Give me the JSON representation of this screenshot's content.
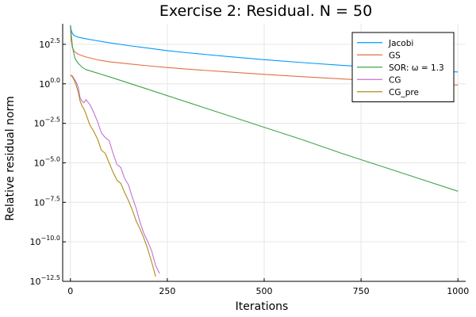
{
  "chart_data": {
    "type": "line",
    "title": "Exercise 2: Residual. N = 50",
    "xlabel": "Iterations",
    "ylabel": "Relative residual norm",
    "xlim": [
      -20,
      1020
    ],
    "ylim": [
      -12.5,
      3.8
    ],
    "y_scale": "log10",
    "grid": true,
    "legend_position": "top-right",
    "x_ticks": [
      {
        "value": 0,
        "label": "0"
      },
      {
        "value": 250,
        "label": "250"
      },
      {
        "value": 500,
        "label": "500"
      },
      {
        "value": 750,
        "label": "750"
      },
      {
        "value": 1000,
        "label": "1000"
      }
    ],
    "y_ticks": [
      {
        "value": 2.5,
        "base": "10",
        "exp": "2.5"
      },
      {
        "value": 0.0,
        "base": "10",
        "exp": "0.0"
      },
      {
        "value": -2.5,
        "base": "10",
        "exp": "−2.5"
      },
      {
        "value": -5.0,
        "base": "10",
        "exp": "−5.0"
      },
      {
        "value": -7.5,
        "base": "10",
        "exp": "−7.5"
      },
      {
        "value": -10.0,
        "base": "10",
        "exp": "−10.0"
      },
      {
        "value": -12.5,
        "base": "10",
        "exp": "−12.5"
      }
    ],
    "series": [
      {
        "name": "Jacobi",
        "color": "#009AFA",
        "x": [
          0,
          2,
          5,
          10,
          20,
          40,
          70,
          100,
          150,
          200,
          250,
          300,
          400,
          500,
          600,
          700,
          800,
          900,
          1000
        ],
        "y": [
          3.7,
          3.4,
          3.2,
          3.05,
          2.95,
          2.85,
          2.72,
          2.6,
          2.42,
          2.26,
          2.1,
          1.97,
          1.74,
          1.53,
          1.34,
          1.17,
          1.02,
          0.87,
          0.75
        ]
      },
      {
        "name": "GS",
        "color": "#E36F47",
        "x": [
          0,
          2,
          5,
          10,
          20,
          40,
          70,
          100,
          150,
          200,
          250,
          300,
          400,
          500,
          600,
          700,
          800,
          900,
          1000
        ],
        "y": [
          3.7,
          2.8,
          2.3,
          2.05,
          1.87,
          1.7,
          1.52,
          1.4,
          1.26,
          1.14,
          1.03,
          0.93,
          0.76,
          0.6,
          0.45,
          0.31,
          0.18,
          0.05,
          -0.08
        ]
      },
      {
        "name": "SOR: ω = 1.3",
        "color": "#3EA44E",
        "x": [
          0,
          2,
          5,
          8,
          12,
          20,
          30,
          40,
          60,
          100,
          200,
          300,
          400,
          500,
          600,
          700,
          800,
          900,
          1000
        ],
        "y": [
          3.7,
          3.2,
          2.4,
          2.0,
          1.6,
          1.3,
          1.05,
          0.9,
          0.75,
          0.45,
          -0.35,
          -1.15,
          -1.95,
          -2.75,
          -3.55,
          -4.4,
          -5.2,
          -6.0,
          -6.8
        ]
      },
      {
        "name": "CG",
        "color": "#C271D2",
        "x": [
          0,
          5,
          10,
          15,
          20,
          25,
          30,
          35,
          40,
          50,
          60,
          70,
          80,
          90,
          100,
          110,
          120,
          130,
          140,
          150,
          160,
          170,
          180,
          190,
          200,
          210,
          220,
          230
        ],
        "y": [
          0.55,
          0.5,
          0.3,
          0.1,
          -0.2,
          -0.9,
          -1.1,
          -1.2,
          -1.0,
          -1.3,
          -1.8,
          -2.4,
          -3.1,
          -3.4,
          -3.6,
          -4.4,
          -5.1,
          -5.3,
          -6.0,
          -6.4,
          -7.2,
          -7.9,
          -8.8,
          -9.5,
          -10.0,
          -10.6,
          -11.5,
          -12.0
        ]
      },
      {
        "name": "CG_pre",
        "color": "#AC8D18",
        "x": [
          0,
          5,
          10,
          15,
          20,
          25,
          30,
          35,
          40,
          50,
          60,
          70,
          80,
          90,
          100,
          110,
          120,
          130,
          140,
          150,
          160,
          170,
          180,
          190,
          200,
          210,
          220
        ],
        "y": [
          0.55,
          0.45,
          0.2,
          -0.1,
          -0.5,
          -1.1,
          -1.4,
          -1.6,
          -1.9,
          -2.6,
          -3.0,
          -3.5,
          -4.2,
          -4.4,
          -5.0,
          -5.6,
          -6.1,
          -6.3,
          -6.9,
          -7.4,
          -8.0,
          -8.7,
          -9.2,
          -9.8,
          -10.5,
          -11.3,
          -12.2
        ]
      }
    ]
  }
}
